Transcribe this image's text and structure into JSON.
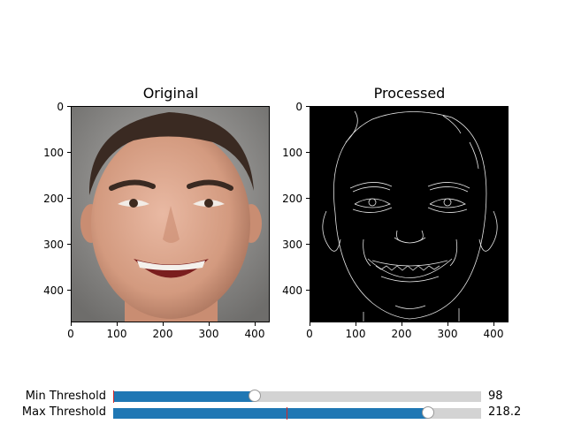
{
  "panels": [
    {
      "title": "Original",
      "image": "photo of a smiling man with short dark hair on a grey background",
      "yticks": [
        "0",
        "100",
        "200",
        "300",
        "400"
      ],
      "xticks": [
        "0",
        "100",
        "200",
        "300",
        "400"
      ]
    },
    {
      "title": "Processed",
      "image": "white edge-detection lines of the face on a black background",
      "yticks": [
        "0",
        "100",
        "200",
        "300",
        "400"
      ],
      "xticks": [
        "0",
        "100",
        "200",
        "300",
        "400"
      ]
    }
  ],
  "sliders": [
    {
      "label": "Min Threshold",
      "value_text": "98",
      "fraction": 0.385,
      "init_fraction": 0.0,
      "colors": {
        "fill": "#1f77b4",
        "track": "#d3d3d3",
        "marker": "#d62728"
      }
    },
    {
      "label": "Max Threshold",
      "value_text": "218.2",
      "fraction": 0.855,
      "init_fraction": 0.47,
      "colors": {
        "fill": "#1f77b4",
        "track": "#d3d3d3",
        "marker": "#d62728"
      }
    }
  ]
}
